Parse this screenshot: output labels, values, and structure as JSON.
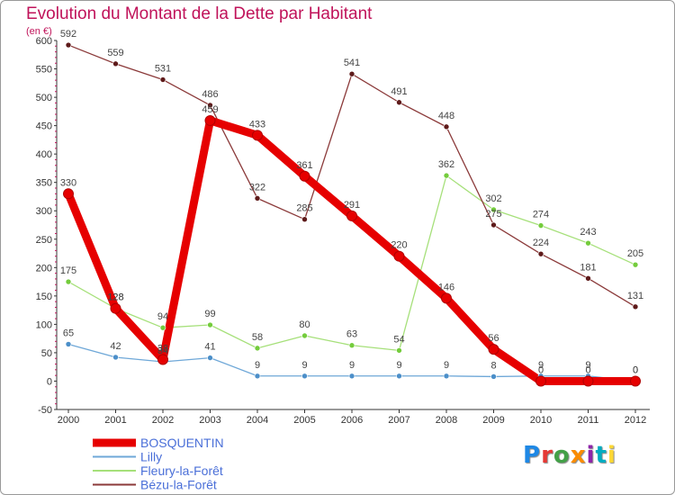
{
  "header": {
    "title": "Evolution du Montant de la Dette par Habitant",
    "unit": "(en €)"
  },
  "chart_data": {
    "type": "line",
    "title": "Evolution du Montant de la Dette par Habitant",
    "ylabel": "(en €)",
    "xlabel": "",
    "ylim": [
      -50,
      600
    ],
    "ytick_step": 50,
    "grid": false,
    "x": [
      "2000",
      "2001",
      "2002",
      "2003",
      "2004",
      "2005",
      "2006",
      "2007",
      "2008",
      "2009",
      "2010",
      "2011",
      "2012"
    ],
    "series": [
      {
        "name": "BOSQUENTIN",
        "color": "#e60000",
        "point_color": "#e60000",
        "thick": true,
        "values": [
          330,
          128,
          38,
          459,
          433,
          361,
          291,
          220,
          146,
          56,
          0,
          0,
          0
        ]
      },
      {
        "name": "Lilly",
        "color": "#6fa8d8",
        "point_color": "#4c8fc9",
        "thick": false,
        "values": [
          65,
          42,
          34,
          41,
          9,
          9,
          9,
          9,
          9,
          8,
          9,
          9,
          0
        ]
      },
      {
        "name": "Fleury-la-Forêt",
        "color": "#a6e07a",
        "point_color": "#74cc3c",
        "thick": false,
        "values": [
          175,
          128,
          94,
          99,
          58,
          80,
          63,
          54,
          362,
          302,
          274,
          243,
          205
        ]
      },
      {
        "name": "Bézu-la-Forêt",
        "color": "#8b3a3a",
        "point_color": "#5e1a1a",
        "thick": false,
        "values": [
          592,
          559,
          531,
          486,
          322,
          285,
          541,
          491,
          448,
          275,
          224,
          181,
          131
        ]
      }
    ],
    "legend_position": "bottom-left"
  },
  "logo": {
    "text": "Proxiti",
    "colors": [
      "#1e88e5",
      "#e53935",
      "#43a047",
      "#fb8c00",
      "#8e24aa",
      "#00acc1",
      "#fdd835"
    ]
  }
}
